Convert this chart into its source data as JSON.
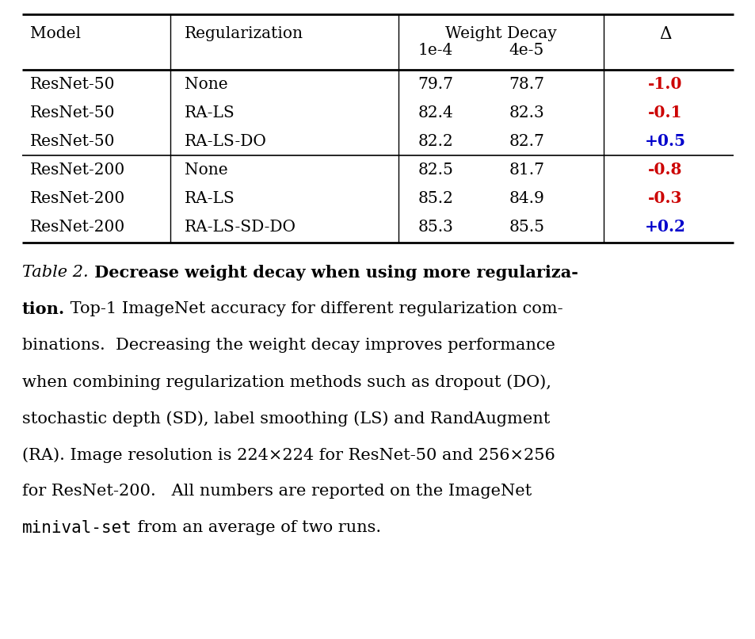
{
  "col_headers_row1": [
    "Model",
    "Regularization",
    "Weight Decay",
    "Δ"
  ],
  "col_headers_row2": [
    "",
    "",
    "1e-4    4e-5",
    ""
  ],
  "rows": [
    [
      "ResNet-50",
      "None",
      "79.7",
      "78.7",
      "-1.0",
      "red"
    ],
    [
      "ResNet-50",
      "RA-LS",
      "82.4",
      "82.3",
      "-0.1",
      "red"
    ],
    [
      "ResNet-50",
      "RA-LS-DO",
      "82.2",
      "82.7",
      "+0.5",
      "blue"
    ],
    [
      "ResNet-200",
      "None",
      "82.5",
      "81.7",
      "-0.8",
      "red"
    ],
    [
      "ResNet-200",
      "RA-LS",
      "85.2",
      "84.9",
      "-0.3",
      "red"
    ],
    [
      "ResNet-200",
      "RA-LS-SD-DO",
      "85.3",
      "85.5",
      "+0.2",
      "blue"
    ]
  ],
  "bg_color": "#ffffff",
  "text_color": "#000000",
  "red_color": "#cc0000",
  "blue_color": "#0000cc",
  "line_color": "#000000",
  "fontsize_table": 14.5,
  "fontsize_caption": 15.0,
  "cap_line1_italic": "Table 2.",
  "cap_line1_bold": " Decrease weight decay when using more regulariza-",
  "cap_line2_bold": "tion.",
  "cap_line2_normal": " Top-1 ImageNet accuracy for different regularization com-",
  "cap_lines_normal": [
    "binations.  Decreasing the weight decay improves performance",
    "when combining regularization methods such as dropout (DO),",
    "stochastic depth (SD), label smoothing (LS) and RandAugment",
    "(RA). Image resolution is 224×224 for ResNet-50 and 256×256",
    "for ResNet-200.   All numbers are reported on the ImageNet"
  ],
  "cap_last_mono": "minival-set",
  "cap_last_normal": " from an average of two runs."
}
